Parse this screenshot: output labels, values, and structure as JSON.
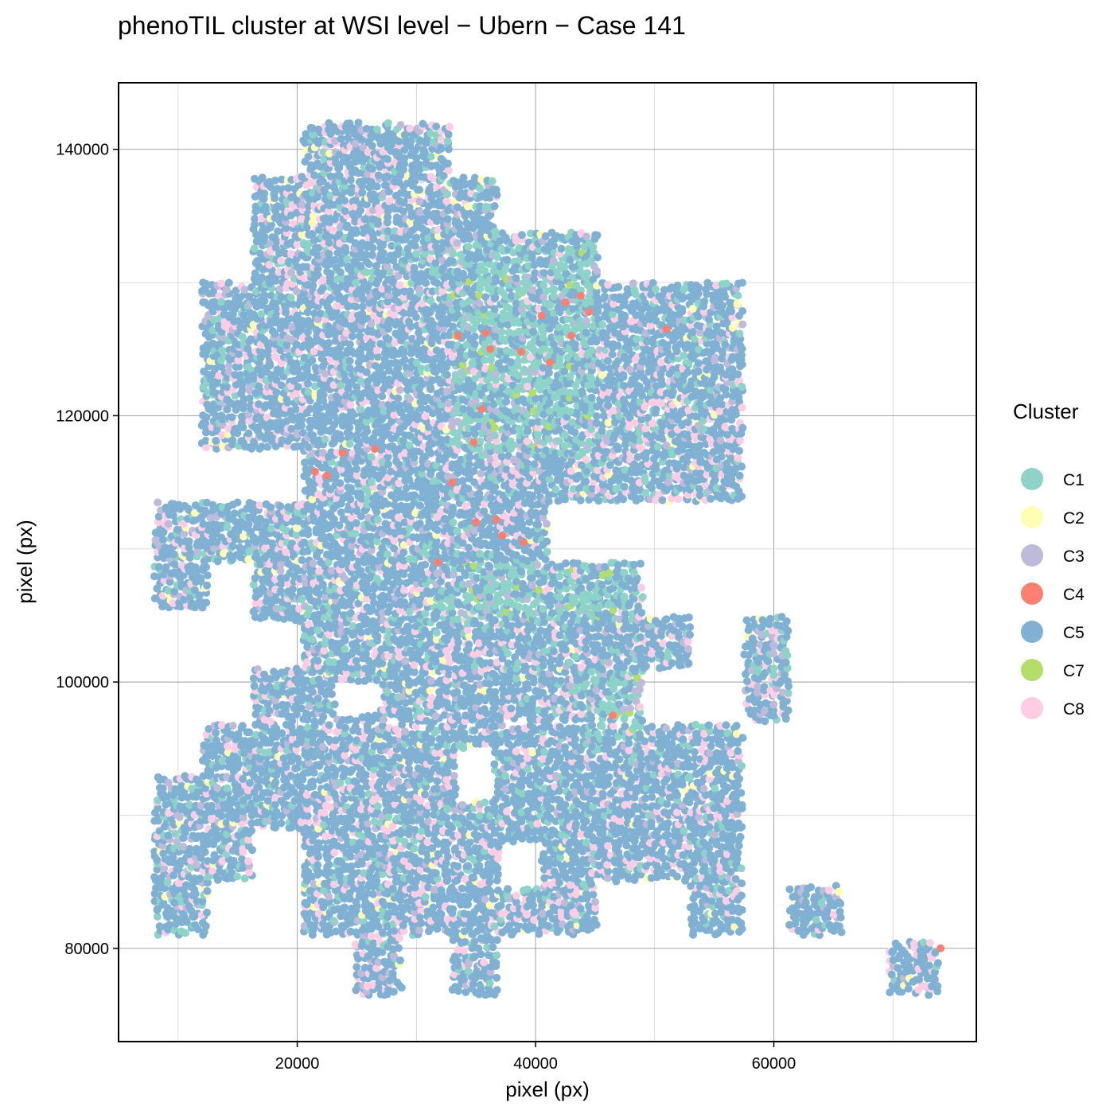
{
  "chart_data": {
    "type": "scatter",
    "title": "phenoTIL cluster at WSI level − Ubern − Case 141",
    "xlabel": "pixel (px)",
    "ylabel": "pixel (px)",
    "xlim": [
      5000,
      77000
    ],
    "ylim": [
      73000,
      145000
    ],
    "x_ticks": [
      20000,
      40000,
      60000
    ],
    "x_tick_labels": [
      "20000",
      "40000",
      "60000"
    ],
    "y_ticks": [
      80000,
      100000,
      120000,
      140000
    ],
    "y_tick_labels": [
      "80000",
      "100000",
      "120000",
      "140000"
    ],
    "grid": true,
    "legend_position": "right",
    "legend_title": "Cluster",
    "series": [
      {
        "name": "C1",
        "color": "#8DD3C7"
      },
      {
        "name": "C2",
        "color": "#FFFFB3"
      },
      {
        "name": "C3",
        "color": "#BEBADA"
      },
      {
        "name": "C4",
        "color": "#FB8072"
      },
      {
        "name": "C5",
        "color": "#80B1D3"
      },
      {
        "name": "C7",
        "color": "#B3DE69"
      },
      {
        "name": "C8",
        "color": "#FCCDE5"
      }
    ],
    "tiles": [
      {
        "x0": 20500,
        "x1": 32800,
        "y0": 136000,
        "y1": 142000
      },
      {
        "x0": 16300,
        "x1": 36800,
        "y0": 130000,
        "y1": 138000
      },
      {
        "x0": 36800,
        "x1": 45200,
        "y0": 121500,
        "y1": 133800
      },
      {
        "x0": 45200,
        "x1": 57400,
        "y0": 117000,
        "y1": 130000
      },
      {
        "x0": 12000,
        "x1": 57400,
        "y0": 117500,
        "y1": 130000
      },
      {
        "x0": 12000,
        "x1": 32800,
        "y0": 117500,
        "y1": 125500
      },
      {
        "x0": 20500,
        "x1": 57400,
        "y0": 113500,
        "y1": 121500
      },
      {
        "x0": 8000,
        "x1": 41000,
        "y0": 109000,
        "y1": 113500
      },
      {
        "x0": 8000,
        "x1": 12500,
        "y0": 105500,
        "y1": 110000
      },
      {
        "x0": 16300,
        "x1": 49000,
        "y0": 104500,
        "y1": 109000
      },
      {
        "x0": 20500,
        "x1": 53000,
        "y0": 101000,
        "y1": 105000
      },
      {
        "x0": 57500,
        "x1": 61300,
        "y0": 97000,
        "y1": 105000
      },
      {
        "x0": 16300,
        "x1": 49000,
        "y0": 97000,
        "y1": 101000
      },
      {
        "x0": 12000,
        "x1": 57400,
        "y0": 93000,
        "y1": 96800
      },
      {
        "x0": 8000,
        "x1": 57400,
        "y0": 89000,
        "y1": 93000
      },
      {
        "x0": 8000,
        "x1": 16300,
        "y0": 85000,
        "y1": 89000
      },
      {
        "x0": 20500,
        "x1": 57400,
        "y0": 85000,
        "y1": 89000
      },
      {
        "x0": 8000,
        "x1": 12500,
        "y0": 81000,
        "y1": 85000
      },
      {
        "x0": 20500,
        "x1": 45200,
        "y0": 81000,
        "y1": 85000
      },
      {
        "x0": 53000,
        "x1": 57400,
        "y0": 81000,
        "y1": 85000
      },
      {
        "x0": 61300,
        "x1": 65700,
        "y0": 81000,
        "y1": 84700
      },
      {
        "x0": 24700,
        "x1": 28800,
        "y0": 76500,
        "y1": 81000
      },
      {
        "x0": 33000,
        "x1": 36800,
        "y0": 76500,
        "y1": 81000
      },
      {
        "x0": 69700,
        "x1": 73800,
        "y0": 76500,
        "y1": 80500
      }
    ],
    "gaps": [
      {
        "x0": 33300,
        "x1": 36500,
        "y0": 91000,
        "y1": 95000
      },
      {
        "x0": 37000,
        "x1": 40500,
        "y0": 84500,
        "y1": 88000
      },
      {
        "x0": 23200,
        "x1": 27000,
        "y0": 97500,
        "y1": 100000
      },
      {
        "x0": 12500,
        "x1": 16300,
        "y0": 105500,
        "y1": 109000
      },
      {
        "x0": 16300,
        "x1": 20500,
        "y0": 117500,
        "y1": 114000
      },
      {
        "x0": 41000,
        "x1": 49000,
        "y0": 110000,
        "y1": 113400
      }
    ],
    "c1_zones": [
      {
        "x0": 33000,
        "x1": 45000,
        "y0": 117000,
        "y1": 133000
      },
      {
        "x0": 32000,
        "x1": 48500,
        "y0": 104500,
        "y1": 109000
      },
      {
        "x0": 44000,
        "x1": 49000,
        "y0": 96000,
        "y1": 101000
      }
    ],
    "c4_points": [
      [
        42500,
        128500
      ],
      [
        43800,
        129000
      ],
      [
        40500,
        127500
      ],
      [
        33500,
        126000
      ],
      [
        35800,
        126200
      ],
      [
        36200,
        125000
      ],
      [
        41200,
        124000
      ],
      [
        51000,
        126500
      ],
      [
        35500,
        120500
      ],
      [
        33000,
        115000
      ],
      [
        26500,
        117500
      ],
      [
        23800,
        117200
      ],
      [
        22500,
        115500
      ],
      [
        21500,
        115800
      ],
      [
        31800,
        109000
      ],
      [
        35000,
        112000
      ],
      [
        36700,
        112200
      ],
      [
        37200,
        111000
      ],
      [
        39000,
        110500
      ],
      [
        46500,
        97500
      ],
      [
        74000,
        80000
      ],
      [
        43000,
        126000
      ],
      [
        44500,
        127800
      ],
      [
        34800,
        118000
      ],
      [
        38800,
        124800
      ]
    ]
  }
}
